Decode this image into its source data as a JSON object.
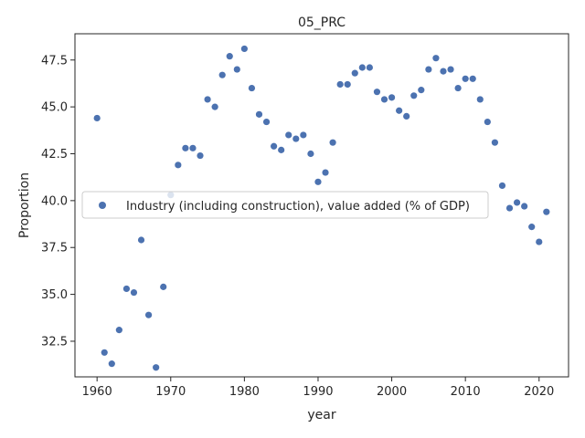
{
  "chart_data": {
    "type": "scatter",
    "title": "05_PRC",
    "xlabel": "year",
    "ylabel": "Proportion",
    "xlim": [
      1957,
      2024
    ],
    "ylim": [
      30.6,
      48.9
    ],
    "xticks": [
      1960,
      1970,
      1980,
      1990,
      2000,
      2010,
      2020
    ],
    "yticks": [
      32.5,
      35.0,
      37.5,
      40.0,
      42.5,
      45.0,
      47.5
    ],
    "ytick_labels": [
      "32.5",
      "35.0",
      "37.5",
      "40.0",
      "42.5",
      "45.0",
      "47.5"
    ],
    "grid": false,
    "legend_position": "center-left",
    "series": [
      {
        "name": "Industry (including construction), value added (% of GDP)",
        "color": "#4c72b0",
        "x": [
          1960,
          1961,
          1962,
          1963,
          1964,
          1965,
          1966,
          1967,
          1968,
          1969,
          1970,
          1971,
          1972,
          1973,
          1974,
          1975,
          1976,
          1977,
          1978,
          1979,
          1980,
          1981,
          1982,
          1983,
          1984,
          1985,
          1986,
          1987,
          1988,
          1989,
          1990,
          1991,
          1992,
          1993,
          1994,
          1995,
          1996,
          1997,
          1998,
          1999,
          2000,
          2001,
          2002,
          2003,
          2004,
          2005,
          2006,
          2007,
          2008,
          2009,
          2010,
          2011,
          2012,
          2013,
          2014,
          2015,
          2016,
          2017,
          2018,
          2019,
          2020,
          2021
        ],
        "y": [
          44.4,
          31.9,
          31.3,
          33.1,
          35.3,
          35.1,
          37.9,
          33.9,
          31.1,
          35.4,
          40.3,
          41.9,
          42.8,
          42.8,
          42.4,
          45.4,
          45.0,
          46.7,
          47.7,
          47.0,
          48.1,
          46.0,
          44.6,
          44.2,
          42.9,
          42.7,
          43.5,
          43.3,
          43.5,
          42.5,
          41.0,
          41.5,
          43.1,
          46.2,
          46.2,
          46.8,
          47.1,
          47.1,
          45.8,
          45.4,
          45.5,
          44.8,
          44.5,
          45.6,
          45.9,
          47.0,
          47.6,
          46.9,
          47.0,
          46.0,
          46.5,
          46.5,
          45.4,
          44.2,
          43.1,
          40.8,
          39.6,
          39.9,
          39.7,
          38.6,
          37.8,
          39.4
        ]
      }
    ]
  }
}
